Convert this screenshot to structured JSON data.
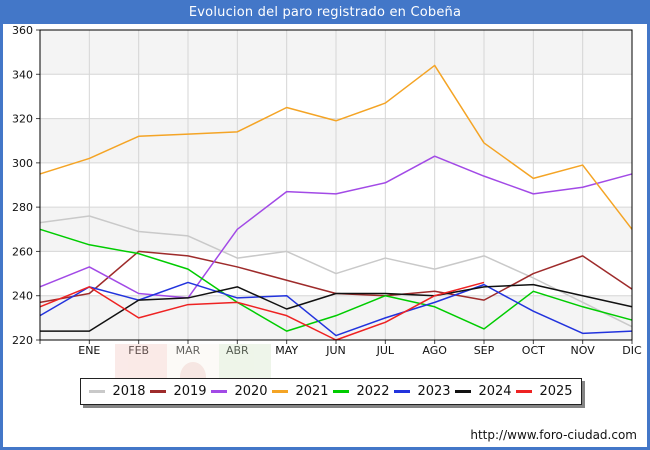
{
  "window": {
    "title": "Evolucion del paro registrado en Cobeña",
    "frame_color": "#4377c8"
  },
  "footer": {
    "url": "http://www.foro-ciudad.com"
  },
  "chart_data": {
    "type": "line",
    "title": "Evolucion del paro registrado en Cobeña",
    "xlabel": "",
    "ylabel": "",
    "x_labels": [
      "ENE",
      "FEB",
      "MAR",
      "ABR",
      "MAY",
      "JUN",
      "JUL",
      "AGO",
      "SEP",
      "OCT",
      "NOV",
      "DIC"
    ],
    "y_ticks": [
      360,
      340,
      320,
      300,
      280,
      260,
      240,
      220
    ],
    "ylim": [
      220,
      360
    ],
    "grid": true,
    "legend_position": "bottom",
    "band_fill": "#f4f4f4",
    "grid_color": "#d6d6d6",
    "note": "each line begins at the plot left edge with a lead-in value drawn before the ENE tick",
    "series": [
      {
        "name": "2018",
        "color": "#c9c9c9",
        "start": 273,
        "values": [
          276,
          269,
          267,
          257,
          260,
          250,
          257,
          252,
          258,
          248,
          237,
          226
        ]
      },
      {
        "name": "2019",
        "color": "#9e2b2b",
        "start": 237,
        "values": [
          241,
          260,
          258,
          253,
          247,
          241,
          240,
          242,
          238,
          250,
          258,
          243
        ]
      },
      {
        "name": "2020",
        "color": "#a24ae6",
        "start": 244,
        "values": [
          253,
          241,
          239,
          270,
          287,
          286,
          291,
          303,
          294,
          286,
          289,
          295
        ]
      },
      {
        "name": "2021",
        "color": "#f4a425",
        "start": 295,
        "values": [
          302,
          312,
          313,
          314,
          325,
          319,
          327,
          344,
          309,
          293,
          299,
          270
        ]
      },
      {
        "name": "2022",
        "color": "#00cc00",
        "start": 270,
        "values": [
          263,
          259,
          252,
          237,
          224,
          231,
          240,
          235,
          225,
          242,
          235,
          229
        ]
      },
      {
        "name": "2023",
        "color": "#2233dd",
        "start": 231,
        "values": [
          244,
          238,
          246,
          239,
          240,
          222,
          230,
          237,
          245,
          233,
          223,
          224
        ]
      },
      {
        "name": "2024",
        "color": "#111111",
        "start": 224,
        "values": [
          224,
          238,
          239,
          244,
          234,
          241,
          241,
          240,
          244,
          245,
          240,
          235
        ]
      },
      {
        "name": "2025",
        "color": "#ee2222",
        "start": 235,
        "values": [
          244,
          230,
          236,
          237,
          231,
          220,
          228,
          240,
          246,
          null,
          null,
          null
        ]
      }
    ]
  }
}
